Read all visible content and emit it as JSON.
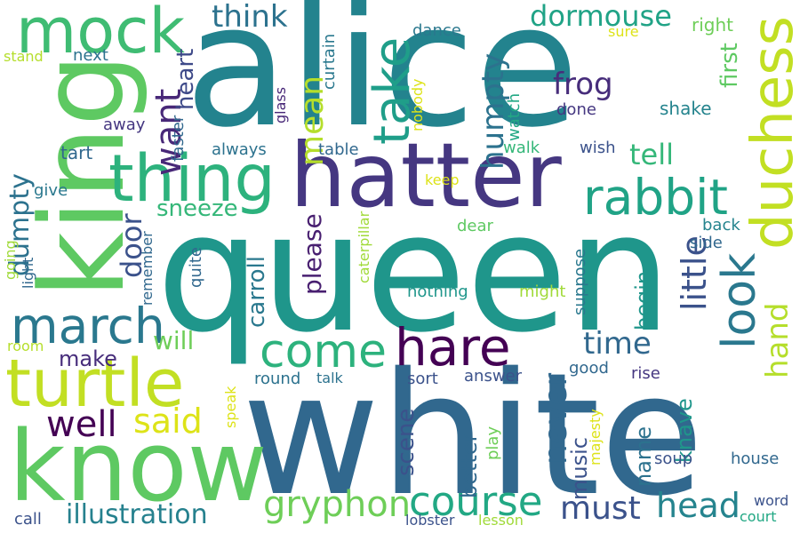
{
  "words": [
    {
      "text": "alice",
      "color": "#23838e"
    },
    {
      "text": "queen",
      "color": "#1f968b"
    },
    {
      "text": "white",
      "color": "#31688e"
    },
    {
      "text": "hatter",
      "color": "#453781"
    },
    {
      "text": "king",
      "color": "#5ec962"
    },
    {
      "text": "know",
      "color": "#5ec962"
    },
    {
      "text": "thing",
      "color": "#2db27d"
    },
    {
      "text": "mock",
      "color": "#3fbc73"
    },
    {
      "text": "turtle",
      "color": "#c2df23"
    },
    {
      "text": "duchess",
      "color": "#c2df23"
    },
    {
      "text": "march",
      "color": "#2a788e"
    },
    {
      "text": "hare",
      "color": "#440154"
    },
    {
      "text": "rabbit",
      "color": "#20a386"
    },
    {
      "text": "come",
      "color": "#2db27d"
    },
    {
      "text": "course",
      "color": "#22a884"
    },
    {
      "text": "take",
      "color": "#1f9e89"
    },
    {
      "text": "gryphon",
      "color": "#6ece58"
    },
    {
      "text": "look",
      "color": "#2a788e"
    },
    {
      "text": "head",
      "color": "#25848e"
    },
    {
      "text": "well",
      "color": "#440154"
    },
    {
      "text": "said",
      "color": "#dde318"
    },
    {
      "text": "illustration",
      "color": "#26818e"
    },
    {
      "text": "must",
      "color": "#3b528b"
    },
    {
      "text": "think",
      "color": "#2c728e"
    },
    {
      "text": "dormouse",
      "color": "#20a386"
    },
    {
      "text": "frog",
      "color": "#472d7b"
    },
    {
      "text": "tell",
      "color": "#35b779"
    },
    {
      "text": "time",
      "color": "#31688e"
    },
    {
      "text": "little",
      "color": "#3b528b"
    },
    {
      "text": "hand",
      "color": "#b5de2b"
    },
    {
      "text": "never",
      "color": "#31688e"
    },
    {
      "text": "want",
      "color": "#482878"
    },
    {
      "text": "mean",
      "color": "#b5de2b"
    },
    {
      "text": "humpty",
      "color": "#2c728e"
    },
    {
      "text": "dumpty",
      "color": "#2c728e"
    },
    {
      "text": "door",
      "color": "#3b528b"
    },
    {
      "text": "heart",
      "color": "#3e4a89"
    },
    {
      "text": "sneeze",
      "color": "#35b779"
    },
    {
      "text": "please",
      "color": "#481f70"
    },
    {
      "text": "carroll",
      "color": "#2a788e"
    },
    {
      "text": "first",
      "color": "#5ec962"
    },
    {
      "text": "knave",
      "color": "#1f968b"
    },
    {
      "text": "name",
      "color": "#2c728e"
    },
    {
      "text": "music",
      "color": "#3b528b"
    },
    {
      "text": "scene",
      "color": "#3b528b"
    },
    {
      "text": "better",
      "color": "#31688e"
    },
    {
      "text": "begin",
      "color": "#1f968b"
    },
    {
      "text": "will",
      "color": "#6ece58"
    },
    {
      "text": "make",
      "color": "#472d7b"
    },
    {
      "text": "dance",
      "color": "#2a788e"
    },
    {
      "text": "right",
      "color": "#6ece58"
    },
    {
      "text": "sure",
      "color": "#dde318"
    },
    {
      "text": "curtain",
      "color": "#2a788e"
    },
    {
      "text": "glass",
      "color": "#482878"
    },
    {
      "text": "nobody",
      "color": "#dde318"
    },
    {
      "text": "watch",
      "color": "#22a884"
    },
    {
      "text": "shake",
      "color": "#25848e"
    },
    {
      "text": "done",
      "color": "#453781"
    },
    {
      "text": "stand",
      "color": "#b5de2b"
    },
    {
      "text": "next",
      "color": "#2c728e"
    },
    {
      "text": "away",
      "color": "#453781"
    },
    {
      "text": "faster",
      "color": "#31688e"
    },
    {
      "text": "always",
      "color": "#2c728e"
    },
    {
      "text": "table",
      "color": "#31688e"
    },
    {
      "text": "walk",
      "color": "#35b779"
    },
    {
      "text": "wish",
      "color": "#3b528b"
    },
    {
      "text": "tart",
      "color": "#31688e"
    },
    {
      "text": "give",
      "color": "#2a788e"
    },
    {
      "text": "keep",
      "color": "#dde318"
    },
    {
      "text": "dear",
      "color": "#5ec962"
    },
    {
      "text": "back",
      "color": "#25848e"
    },
    {
      "text": "side",
      "color": "#31688e"
    },
    {
      "text": "remember",
      "color": "#31688e"
    },
    {
      "text": "quite",
      "color": "#31688e"
    },
    {
      "text": "caterpillar",
      "color": "#a0da39"
    },
    {
      "text": "suppose",
      "color": "#2a788e"
    },
    {
      "text": "nothing",
      "color": "#1f968b"
    },
    {
      "text": "might",
      "color": "#a0da39"
    },
    {
      "text": "going",
      "color": "#a0da39"
    },
    {
      "text": "light",
      "color": "#31688e"
    },
    {
      "text": "room",
      "color": "#b5de2b"
    },
    {
      "text": "good",
      "color": "#31688e"
    },
    {
      "text": "round",
      "color": "#2c728e"
    },
    {
      "text": "talk",
      "color": "#2c728e"
    },
    {
      "text": "sort",
      "color": "#3b528b"
    },
    {
      "text": "answer",
      "color": "#3b528b"
    },
    {
      "text": "rise",
      "color": "#453781"
    },
    {
      "text": "speak",
      "color": "#dde318"
    },
    {
      "text": "majesty",
      "color": "#dde318"
    },
    {
      "text": "play",
      "color": "#6ece58"
    },
    {
      "text": "soup",
      "color": "#3b528b"
    },
    {
      "text": "house",
      "color": "#31688e"
    },
    {
      "text": "word",
      "color": "#3b528b"
    },
    {
      "text": "call",
      "color": "#3b528b"
    },
    {
      "text": "lobster",
      "color": "#3b528b"
    },
    {
      "text": "lesson",
      "color": "#a0da39"
    },
    {
      "text": "court",
      "color": "#22a884"
    }
  ]
}
